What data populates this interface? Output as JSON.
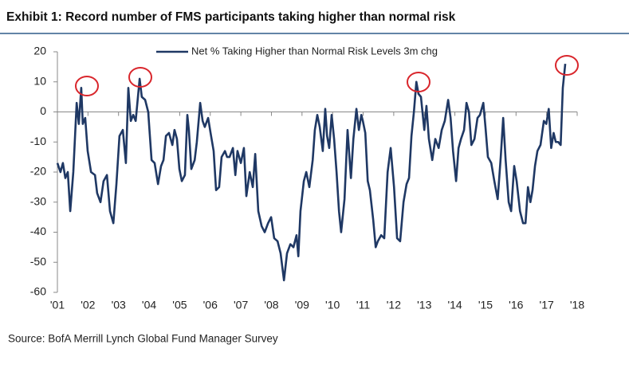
{
  "chart_data": {
    "type": "line",
    "title": "Exhibit 1: Record number of FMS participants taking higher than normal risk",
    "source": "Source: BofA Merrill Lynch Global Fund Manager Survey",
    "xlim": [
      2001,
      2018
    ],
    "xticks": [
      {
        "value": 2001,
        "label": "'01"
      },
      {
        "value": 2002,
        "label": "'02"
      },
      {
        "value": 2003,
        "label": "'03"
      },
      {
        "value": 2004,
        "label": "'04"
      },
      {
        "value": 2005,
        "label": "'05"
      },
      {
        "value": 2006,
        "label": "'06"
      },
      {
        "value": 2007,
        "label": "'07"
      },
      {
        "value": 2008,
        "label": "'08"
      },
      {
        "value": 2009,
        "label": "'09"
      },
      {
        "value": 2010,
        "label": "'10"
      },
      {
        "value": 2011,
        "label": "'11"
      },
      {
        "value": 2012,
        "label": "'12"
      },
      {
        "value": 2013,
        "label": "'13"
      },
      {
        "value": 2014,
        "label": "'14"
      },
      {
        "value": 2015,
        "label": "'15"
      },
      {
        "value": 2016,
        "label": "'16"
      },
      {
        "value": 2017,
        "label": "'17"
      },
      {
        "value": 2018,
        "label": "'18"
      }
    ],
    "ylim": [
      -60,
      20
    ],
    "yticks": [
      -60,
      -50,
      -40,
      -30,
      -20,
      -10,
      0,
      10,
      20
    ],
    "grid": false,
    "legend": "top",
    "x": [
      2001.0,
      2001.1,
      2001.18,
      2001.26,
      2001.34,
      2001.42,
      2001.52,
      2001.63,
      2001.7,
      2001.78,
      2001.83,
      2001.91,
      2001.99,
      2002.1,
      2002.23,
      2002.3,
      2002.41,
      2002.51,
      2002.62,
      2002.72,
      2002.83,
      2002.93,
      2003.03,
      2003.14,
      2003.24,
      2003.32,
      2003.4,
      2003.48,
      2003.56,
      2003.69,
      2003.76,
      2003.87,
      2003.97,
      2004.08,
      2004.18,
      2004.29,
      2004.39,
      2004.47,
      2004.55,
      2004.65,
      2004.76,
      2004.83,
      2004.91,
      2004.99,
      2005.07,
      2005.17,
      2005.25,
      2005.3,
      2005.38,
      2005.49,
      2005.56,
      2005.67,
      2005.75,
      2005.82,
      2005.93,
      2006.01,
      2006.11,
      2006.19,
      2006.29,
      2006.37,
      2006.48,
      2006.55,
      2006.63,
      2006.74,
      2006.82,
      2006.89,
      2007.0,
      2007.1,
      2007.18,
      2007.29,
      2007.39,
      2007.47,
      2007.57,
      2007.68,
      2007.78,
      2007.89,
      2007.99,
      2008.09,
      2008.2,
      2008.3,
      2008.41,
      2008.51,
      2008.62,
      2008.72,
      2008.82,
      2008.88,
      2008.95,
      2009.06,
      2009.14,
      2009.24,
      2009.35,
      2009.42,
      2009.5,
      2009.58,
      2009.68,
      2009.76,
      2009.82,
      2009.89,
      2009.97,
      2010.05,
      2010.13,
      2010.21,
      2010.28,
      2010.39,
      2010.49,
      2010.6,
      2010.68,
      2010.78,
      2010.86,
      2010.94,
      2010.99,
      2011.07,
      2011.15,
      2011.22,
      2011.33,
      2011.41,
      2011.48,
      2011.59,
      2011.69,
      2011.8,
      2011.9,
      2012.01,
      2012.11,
      2012.21,
      2012.32,
      2012.42,
      2012.5,
      2012.58,
      2012.66,
      2012.74,
      2012.81,
      2012.89,
      2013.0,
      2013.07,
      2013.15,
      2013.26,
      2013.36,
      2013.47,
      2013.57,
      2013.67,
      2013.78,
      2013.86,
      2013.94,
      2014.04,
      2014.12,
      2014.2,
      2014.3,
      2014.38,
      2014.46,
      2014.54,
      2014.64,
      2014.74,
      2014.82,
      2014.93,
      2015.0,
      2015.08,
      2015.19,
      2015.29,
      2015.4,
      2015.5,
      2015.58,
      2015.66,
      2015.76,
      2015.84,
      2015.94,
      2016.02,
      2016.13,
      2016.23,
      2016.31,
      2016.39,
      2016.47,
      2016.54,
      2016.62,
      2016.7,
      2016.8,
      2016.91,
      2016.99,
      2017.07,
      2017.15,
      2017.23,
      2017.3,
      2017.38,
      2017.46,
      2017.53,
      2017.61
    ],
    "series": [
      {
        "name": "Net % Taking Higher than Normal Risk Levels 3m chg",
        "color": "#1f3864",
        "values": [
          -17,
          -20,
          -17,
          -22,
          -20,
          -33,
          -20,
          3,
          -4,
          8,
          -4,
          -2,
          -13,
          -20,
          -21,
          -27,
          -30,
          -23,
          -21,
          -33,
          -37,
          -24,
          -8,
          -6,
          -17,
          8,
          -3,
          -1,
          -3,
          11,
          5,
          4,
          0,
          -16,
          -17,
          -24,
          -18,
          -16,
          -8,
          -7,
          -11,
          -6,
          -9,
          -19,
          -23,
          -21,
          -1,
          -6,
          -19,
          -16,
          -10,
          3,
          -3,
          -5,
          -2,
          -7,
          -13,
          -26,
          -25,
          -15,
          -13,
          -15,
          -15,
          -12,
          -21,
          -13,
          -17,
          -12,
          -28,
          -20,
          -25,
          -14,
          -33,
          -38,
          -40,
          -37,
          -35,
          -42,
          -43,
          -47,
          -56,
          -47,
          -44,
          -45,
          -41,
          -48,
          -33,
          -23,
          -20,
          -25,
          -16,
          -6,
          -1,
          -5,
          -13,
          1,
          -8,
          -12,
          -1,
          -9,
          -20,
          -33,
          -40,
          -29,
          -6,
          -22,
          -9,
          1,
          -6,
          -1,
          -3,
          -7,
          -23,
          -26,
          -36,
          -45,
          -43,
          -41,
          -42,
          -20,
          -12,
          -25,
          -42,
          -43,
          -30,
          -24,
          -22,
          -8,
          0,
          10,
          6,
          5,
          -6,
          2,
          -9,
          -16,
          -9,
          -12,
          -6,
          -3,
          4,
          -2,
          -13,
          -23,
          -12,
          -9,
          -6,
          3,
          0,
          -11,
          -9,
          -2,
          -1,
          3,
          -5,
          -15,
          -17,
          -23,
          -29,
          -15,
          -2,
          -16,
          -30,
          -33,
          -18,
          -23,
          -33,
          -37,
          -37,
          -25,
          -30,
          -26,
          -18,
          -13,
          -11,
          -3,
          -4,
          1,
          -12,
          -7,
          -10,
          -10,
          -11,
          8,
          16
        ]
      }
    ]
  }
}
